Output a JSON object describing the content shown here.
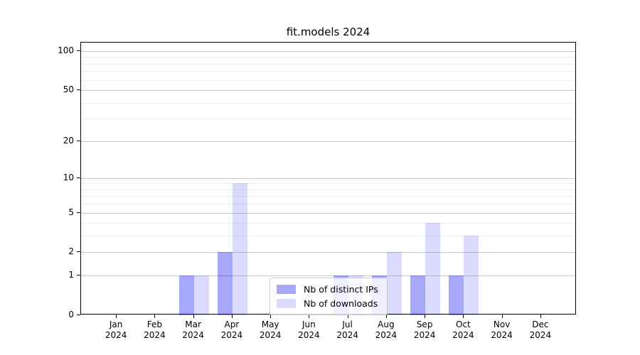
{
  "chart_data": {
    "type": "bar",
    "title": "fit.models 2024",
    "categories": [
      "Jan 2024",
      "Feb 2024",
      "Mar 2024",
      "Apr 2024",
      "May 2024",
      "Jun 2024",
      "Jul 2024",
      "Aug 2024",
      "Sep 2024",
      "Oct 2024",
      "Nov 2024",
      "Dec 2024"
    ],
    "series": [
      {
        "name": "Nb of distinct IPs",
        "color": "rgba(0,0,240,0.34)",
        "values": [
          0,
          0,
          1,
          2,
          0,
          0,
          1,
          1,
          1,
          1,
          0,
          0
        ]
      },
      {
        "name": "Nb of downloads",
        "color": "rgba(0,0,240,0.14)",
        "values": [
          0,
          0,
          1,
          9,
          0,
          0,
          1,
          2,
          4,
          3,
          0,
          0
        ]
      }
    ],
    "xlabel": "",
    "ylabel": "",
    "yscale": "log1p",
    "ylim": [
      0,
      116
    ],
    "y_major_ticks": [
      0,
      1,
      2,
      5,
      10,
      20,
      50,
      100
    ],
    "y_minor_ticks": [
      3,
      4,
      6,
      7,
      8,
      9,
      30,
      40,
      60,
      70,
      80,
      90
    ],
    "grid": "both",
    "legend_position": "lower center",
    "axis_color": "#000000",
    "grid_major_color": "#c9c9c9",
    "grid_minor_color": "#ececec",
    "background_color": "#ffffff"
  }
}
